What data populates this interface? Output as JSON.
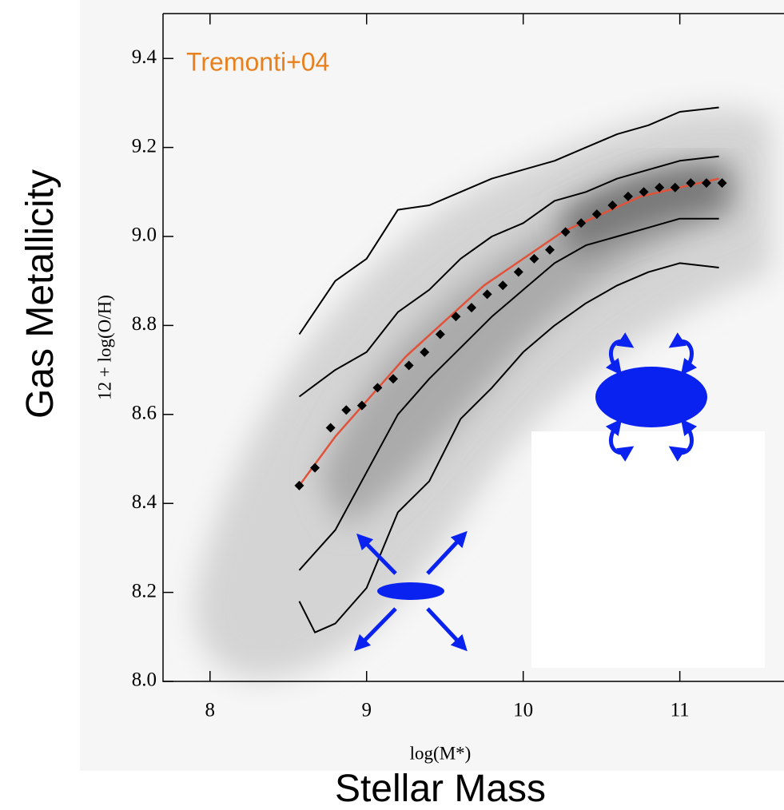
{
  "captions": {
    "y": "Gas Metallicity",
    "x": "Stellar Mass"
  },
  "chart_data": {
    "type": "line",
    "annotation": "Tremonti+04",
    "x_label": "log(M*)",
    "y_label": "12 + log(O/H)",
    "xlim": [
      7.7,
      11.65
    ],
    "ylim": [
      8.0,
      9.5
    ],
    "xticks": [
      8,
      9,
      10,
      11
    ],
    "yticks": [
      {
        "value": 8,
        "label": "8.0"
      },
      8.2,
      8.4,
      8.6,
      8.8,
      {
        "value": 9,
        "label": "9.0"
      },
      9.2,
      9.4
    ],
    "series": [
      {
        "type": "line",
        "color": "#000000",
        "x": [
          8.57,
          8.8,
          9.0,
          9.2,
          9.4,
          9.6,
          9.8,
          10.0,
          10.2,
          10.4,
          10.6,
          10.8,
          11.0,
          11.25
        ],
        "values": [
          8.78,
          8.9,
          8.95,
          9.06,
          9.07,
          9.1,
          9.13,
          9.15,
          9.17,
          9.2,
          9.23,
          9.25,
          9.28,
          9.29
        ]
      },
      {
        "type": "line",
        "color": "#000000",
        "x": [
          8.57,
          8.8,
          9.0,
          9.2,
          9.4,
          9.6,
          9.8,
          10.0,
          10.2,
          10.4,
          10.6,
          10.8,
          11.0,
          11.25
        ],
        "values": [
          8.64,
          8.7,
          8.74,
          8.83,
          8.88,
          8.95,
          9.0,
          9.03,
          9.08,
          9.1,
          9.13,
          9.15,
          9.17,
          9.18
        ]
      },
      {
        "type": "line",
        "color": "#000000",
        "x": [
          8.57,
          8.8,
          9.0,
          9.2,
          9.4,
          9.6,
          9.8,
          10.0,
          10.2,
          10.4,
          10.6,
          10.8,
          11.0,
          11.25
        ],
        "values": [
          8.25,
          8.34,
          8.47,
          8.6,
          8.68,
          8.75,
          8.82,
          8.88,
          8.94,
          8.98,
          9.0,
          9.02,
          9.04,
          9.04
        ]
      },
      {
        "type": "line",
        "color": "#000000",
        "x": [
          8.57,
          8.67,
          8.8,
          9.0,
          9.2,
          9.4,
          9.6,
          9.8,
          10.0,
          10.2,
          10.4,
          10.6,
          10.8,
          11.0,
          11.25
        ],
        "values": [
          8.18,
          8.11,
          8.13,
          8.21,
          8.38,
          8.45,
          8.59,
          8.66,
          8.74,
          8.8,
          8.85,
          8.89,
          8.92,
          8.94,
          8.93
        ]
      },
      {
        "type": "line",
        "color": "#e0533a",
        "x": [
          8.57,
          8.8,
          9.0,
          9.25,
          9.5,
          9.75,
          10.0,
          10.25,
          10.5,
          10.75,
          11.0,
          11.25
        ],
        "values": [
          8.44,
          8.55,
          8.63,
          8.73,
          8.81,
          8.89,
          8.95,
          9.01,
          9.05,
          9.09,
          9.11,
          9.13
        ]
      },
      {
        "type": "scatter",
        "color": "#000000",
        "x": [
          8.57,
          8.67,
          8.77,
          8.87,
          8.97,
          9.07,
          9.17,
          9.27,
          9.37,
          9.47,
          9.57,
          9.67,
          9.77,
          9.87,
          9.97,
          10.07,
          10.17,
          10.27,
          10.37,
          10.47,
          10.57,
          10.67,
          10.77,
          10.87,
          10.97,
          11.07,
          11.17,
          11.27
        ],
        "values": [
          8.44,
          8.48,
          8.57,
          8.61,
          8.62,
          8.66,
          8.68,
          8.71,
          8.74,
          8.78,
          8.82,
          8.84,
          8.87,
          8.89,
          8.92,
          8.95,
          8.97,
          9.01,
          9.03,
          9.05,
          9.07,
          9.09,
          9.1,
          9.11,
          9.11,
          9.12,
          9.12,
          9.12
        ]
      }
    ]
  }
}
